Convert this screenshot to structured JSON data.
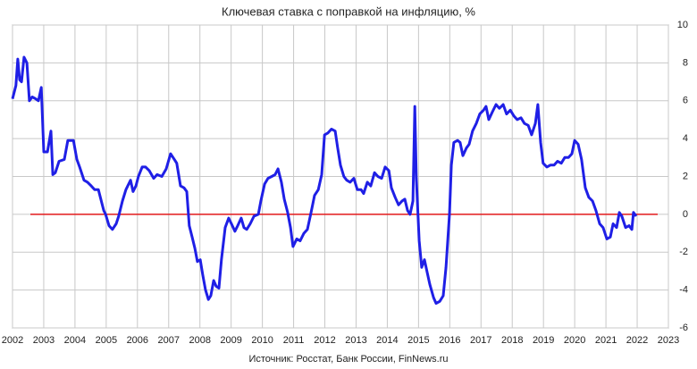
{
  "chart_data": {
    "type": "line",
    "title": "Ключевая ставка с поправкой на инфляцию, %",
    "source": "Источник: Росстат, Банк России, FinNews.ru",
    "x": [
      2002.0,
      2002.11,
      2002.17,
      2002.23,
      2002.29,
      2002.37,
      2002.46,
      2002.54,
      2002.63,
      2002.74,
      2002.83,
      2002.92,
      2003.0,
      2003.12,
      2003.23,
      2003.29,
      2003.37,
      2003.49,
      2003.66,
      2003.77,
      2003.95,
      2004.06,
      2004.15,
      2004.29,
      2004.4,
      2004.52,
      2004.63,
      2004.75,
      2004.92,
      2004.98,
      2005.09,
      2005.2,
      2005.32,
      2005.4,
      2005.52,
      2005.63,
      2005.78,
      2005.86,
      2005.95,
      2006.03,
      2006.15,
      2006.26,
      2006.38,
      2006.52,
      2006.63,
      2006.78,
      2006.92,
      2007.06,
      2007.18,
      2007.26,
      2007.38,
      2007.49,
      2007.58,
      2007.66,
      2007.75,
      2007.84,
      2007.92,
      2008.01,
      2008.09,
      2008.18,
      2008.27,
      2008.35,
      2008.44,
      2008.52,
      2008.61,
      2008.69,
      2008.81,
      2008.92,
      2009.01,
      2009.12,
      2009.21,
      2009.32,
      2009.41,
      2009.5,
      2009.61,
      2009.73,
      2009.87,
      2009.95,
      2010.07,
      2010.18,
      2010.3,
      2010.41,
      2010.5,
      2010.61,
      2010.7,
      2010.81,
      2010.9,
      2010.98,
      2011.1,
      2011.21,
      2011.33,
      2011.44,
      2011.56,
      2011.67,
      2011.79,
      2011.9,
      2011.99,
      2012.1,
      2012.21,
      2012.33,
      2012.41,
      2012.5,
      2012.61,
      2012.7,
      2012.81,
      2012.93,
      2013.04,
      2013.16,
      2013.24,
      2013.36,
      2013.47,
      2013.59,
      2013.7,
      2013.82,
      2013.93,
      2014.05,
      2014.13,
      2014.25,
      2014.36,
      2014.47,
      2014.56,
      2014.65,
      2014.73,
      2014.82,
      2014.88,
      2014.93,
      2015.02,
      2015.1,
      2015.19,
      2015.28,
      2015.36,
      2015.48,
      2015.56,
      2015.68,
      2015.79,
      2015.88,
      2015.99,
      2016.05,
      2016.13,
      2016.25,
      2016.33,
      2016.42,
      2016.53,
      2016.62,
      2016.73,
      2016.85,
      2016.96,
      2017.08,
      2017.16,
      2017.25,
      2017.36,
      2017.48,
      2017.59,
      2017.71,
      2017.82,
      2017.94,
      2018.05,
      2018.16,
      2018.28,
      2018.39,
      2018.51,
      2018.62,
      2018.74,
      2018.82,
      2018.91,
      2018.99,
      2019.11,
      2019.22,
      2019.34,
      2019.45,
      2019.57,
      2019.68,
      2019.8,
      2019.91,
      2020.0,
      2020.11,
      2020.22,
      2020.34,
      2020.45,
      2020.57,
      2020.68,
      2020.8,
      2020.91,
      2021.03,
      2021.14,
      2021.23,
      2021.34,
      2021.43,
      2021.51,
      2021.63,
      2021.74,
      2021.83,
      2021.88,
      2021.97
    ],
    "series": [
      {
        "name": "Ключевая ставка с поправкой на инфляцию",
        "color": "#1f1fe6",
        "values": [
          6.1,
          6.8,
          8.2,
          7.1,
          7.0,
          8.3,
          8.0,
          6.0,
          6.2,
          6.1,
          6.0,
          6.7,
          3.3,
          3.3,
          4.4,
          2.1,
          2.2,
          2.8,
          2.9,
          3.9,
          3.9,
          2.9,
          2.5,
          1.8,
          1.7,
          1.5,
          1.3,
          1.3,
          0.2,
          0,
          -0.6,
          -0.8,
          -0.5,
          -0.1,
          0.7,
          1.3,
          1.8,
          1.2,
          1.5,
          2.0,
          2.5,
          2.5,
          2.3,
          1.9,
          2.1,
          2.0,
          2.4,
          3.2,
          2.9,
          2.7,
          1.5,
          1.4,
          1.2,
          -0.6,
          -1.2,
          -1.8,
          -2.5,
          -2.4,
          -3.2,
          -4.0,
          -4.5,
          -4.3,
          -3.5,
          -3.8,
          -3.9,
          -2.4,
          -0.7,
          -0.2,
          -0.5,
          -0.9,
          -0.6,
          -0.2,
          -0.7,
          -0.8,
          -0.5,
          -0.1,
          0,
          0.7,
          1.6,
          1.9,
          2.0,
          2.1,
          2.4,
          1.7,
          0.8,
          0.1,
          -0.7,
          -1.7,
          -1.3,
          -1.4,
          -1.0,
          -0.8,
          0.1,
          1.0,
          1.3,
          2.1,
          4.2,
          4.3,
          4.5,
          4.4,
          3.5,
          2.6,
          2.0,
          1.8,
          1.7,
          1.9,
          1.3,
          1.3,
          1.1,
          1.7,
          1.5,
          2.2,
          2.0,
          1.9,
          2.5,
          2.3,
          1.4,
          0.9,
          0.5,
          0.7,
          0.8,
          0.2,
          0,
          0.7,
          5.7,
          1.9,
          -1.4,
          -2.8,
          -2.4,
          -3.1,
          -3.7,
          -4.4,
          -4.7,
          -4.6,
          -4.3,
          -2.8,
          0,
          2.6,
          3.8,
          3.9,
          3.8,
          3.1,
          3.5,
          3.7,
          4.4,
          4.8,
          5.3,
          5.5,
          5.7,
          5.0,
          5.4,
          5.8,
          5.6,
          5.8,
          5.3,
          5.5,
          5.2,
          5.0,
          5.1,
          4.8,
          4.7,
          4.2,
          4.8,
          5.8,
          3.8,
          2.7,
          2.5,
          2.6,
          2.6,
          2.8,
          2.7,
          3.0,
          3.0,
          3.2,
          3.9,
          3.7,
          2.9,
          1.4,
          0.9,
          0.7,
          0.2,
          -0.5,
          -0.7,
          -1.3,
          -1.2,
          -0.5,
          -0.7,
          0.1,
          -0.1,
          -0.7,
          -0.6,
          -0.8,
          0.1,
          -0.1
        ]
      }
    ],
    "hline": {
      "value": 0,
      "color": "#e31a1c"
    },
    "xlim": [
      2002,
      2023
    ],
    "xticks": [
      2002,
      2003,
      2004,
      2005,
      2006,
      2007,
      2008,
      2009,
      2010,
      2011,
      2012,
      2013,
      2014,
      2015,
      2016,
      2017,
      2018,
      2019,
      2020,
      2021,
      2022,
      2023
    ],
    "ylim": [
      -6,
      10
    ],
    "yticks": [
      -6,
      -4,
      -2,
      0,
      2,
      4,
      6,
      8,
      10
    ],
    "grid": true
  }
}
